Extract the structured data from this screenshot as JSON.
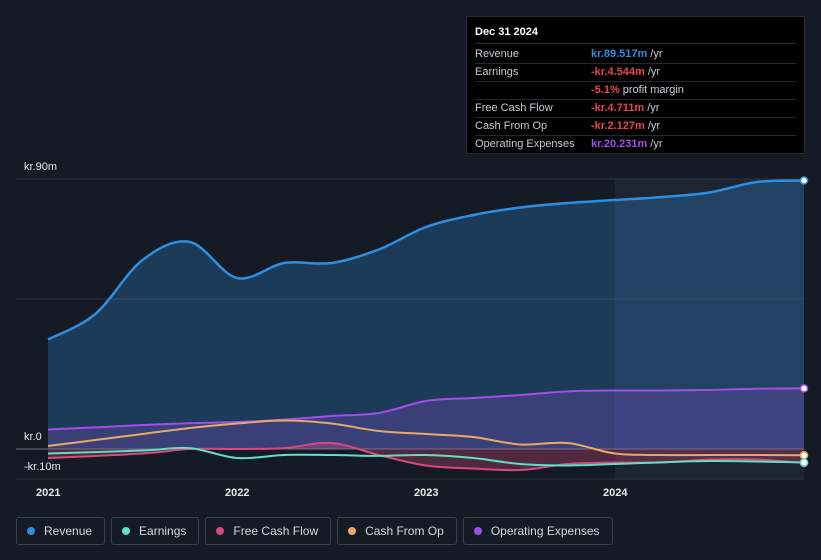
{
  "chart_data": {
    "type": "area",
    "y_unit": "kr.m",
    "ylim": [
      -10,
      90
    ],
    "y_tick_labels": {
      "top": "kr.90m",
      "zero": "kr.0",
      "bottom": "-kr.10m"
    },
    "x_tick_labels": [
      "2021",
      "2022",
      "2023",
      "2024"
    ],
    "x_tick_values": [
      2021.0,
      2022.0,
      2023.0,
      2024.0
    ],
    "series": [
      {
        "name": "Revenue",
        "color": "#2e8fe0",
        "fill": true,
        "points": [
          [
            2021.0,
            36.5
          ],
          [
            2021.25,
            45
          ],
          [
            2021.5,
            63
          ],
          [
            2021.75,
            69
          ],
          [
            2022.0,
            57
          ],
          [
            2022.25,
            62
          ],
          [
            2022.5,
            62
          ],
          [
            2022.75,
            66.5
          ],
          [
            2023.0,
            74
          ],
          [
            2023.25,
            78
          ],
          [
            2023.5,
            80.5
          ],
          [
            2023.75,
            82
          ],
          [
            2024.0,
            83
          ],
          [
            2024.25,
            84
          ],
          [
            2024.5,
            85.5
          ],
          [
            2024.75,
            89
          ],
          [
            2025.0,
            89.5
          ]
        ]
      },
      {
        "name": "Earnings",
        "color": "#5ee0c6",
        "fill": false,
        "points": [
          [
            2021.0,
            -1.5
          ],
          [
            2021.5,
            -0.5
          ],
          [
            2021.75,
            0.3
          ],
          [
            2022.0,
            -3
          ],
          [
            2022.25,
            -2
          ],
          [
            2022.5,
            -2
          ],
          [
            2022.75,
            -2.3
          ],
          [
            2023.0,
            -2
          ],
          [
            2023.25,
            -3
          ],
          [
            2023.5,
            -5
          ],
          [
            2023.75,
            -5.5
          ],
          [
            2024.0,
            -5
          ],
          [
            2024.5,
            -4
          ],
          [
            2025.0,
            -4.5
          ]
        ]
      },
      {
        "name": "Free Cash Flow",
        "color": "#d9487e",
        "fill": true,
        "points": [
          [
            2021.0,
            -3
          ],
          [
            2021.5,
            -1.5
          ],
          [
            2021.75,
            0
          ],
          [
            2022.0,
            0
          ],
          [
            2022.25,
            0.3
          ],
          [
            2022.5,
            2
          ],
          [
            2022.75,
            -2
          ],
          [
            2023.0,
            -5.5
          ],
          [
            2023.25,
            -6.5
          ],
          [
            2023.5,
            -7
          ],
          [
            2023.75,
            -5
          ],
          [
            2024.0,
            -4.5
          ],
          [
            2024.25,
            -4.5
          ],
          [
            2024.5,
            -3.5
          ],
          [
            2024.75,
            -3.5
          ],
          [
            2025.0,
            -4.7
          ]
        ]
      },
      {
        "name": "Cash From Op",
        "color": "#e8a868",
        "fill": false,
        "points": [
          [
            2021.0,
            1
          ],
          [
            2021.25,
            3
          ],
          [
            2021.5,
            5
          ],
          [
            2021.75,
            7
          ],
          [
            2022.0,
            8.5
          ],
          [
            2022.25,
            9.5
          ],
          [
            2022.5,
            8.5
          ],
          [
            2022.75,
            6
          ],
          [
            2023.0,
            5
          ],
          [
            2023.25,
            4
          ],
          [
            2023.5,
            1.5
          ],
          [
            2023.75,
            2
          ],
          [
            2024.0,
            -1.5
          ],
          [
            2024.25,
            -2
          ],
          [
            2024.5,
            -2
          ],
          [
            2024.75,
            -2
          ],
          [
            2025.0,
            -2.1
          ]
        ]
      },
      {
        "name": "Operating Expenses",
        "color": "#a44ee8",
        "fill": true,
        "points": [
          [
            2021.0,
            6.5
          ],
          [
            2021.25,
            7.2
          ],
          [
            2021.5,
            8
          ],
          [
            2021.75,
            8.6
          ],
          [
            2022.0,
            9
          ],
          [
            2022.25,
            9.8
          ],
          [
            2022.5,
            11
          ],
          [
            2022.75,
            12
          ],
          [
            2023.0,
            16
          ],
          [
            2023.25,
            17
          ],
          [
            2023.5,
            18
          ],
          [
            2023.75,
            19.2
          ],
          [
            2024.0,
            19.5
          ],
          [
            2024.25,
            19.5
          ],
          [
            2024.5,
            19.7
          ],
          [
            2024.75,
            20.1
          ],
          [
            2025.0,
            20.2
          ]
        ]
      }
    ],
    "highlight_from_x": 2024.0,
    "highlight_to_x": 2025.0
  },
  "tooltip": {
    "date": "Dec 31 2024",
    "rows": [
      {
        "label": "Revenue",
        "value": "kr.89.517m",
        "unit": "/yr",
        "color": "#2e8fe0"
      },
      {
        "label": "Earnings",
        "value": "-kr.4.544m",
        "unit": "/yr",
        "color": "#e8454a"
      },
      {
        "label": "",
        "value": "-5.1%",
        "unit": "profit margin",
        "color": "#e8454a"
      },
      {
        "label": "Free Cash Flow",
        "value": "-kr.4.711m",
        "unit": "/yr",
        "color": "#e8454a"
      },
      {
        "label": "Cash From Op",
        "value": "-kr.2.127m",
        "unit": "/yr",
        "color": "#e8454a"
      },
      {
        "label": "Operating Expenses",
        "value": "kr.20.231m",
        "unit": "/yr",
        "color": "#a44ee8"
      }
    ]
  },
  "legend": [
    {
      "label": "Revenue",
      "color": "#2e8fe0"
    },
    {
      "label": "Earnings",
      "color": "#5ee0c6"
    },
    {
      "label": "Free Cash Flow",
      "color": "#d9487e"
    },
    {
      "label": "Cash From Op",
      "color": "#e8a868"
    },
    {
      "label": "Operating Expenses",
      "color": "#a44ee8"
    }
  ]
}
